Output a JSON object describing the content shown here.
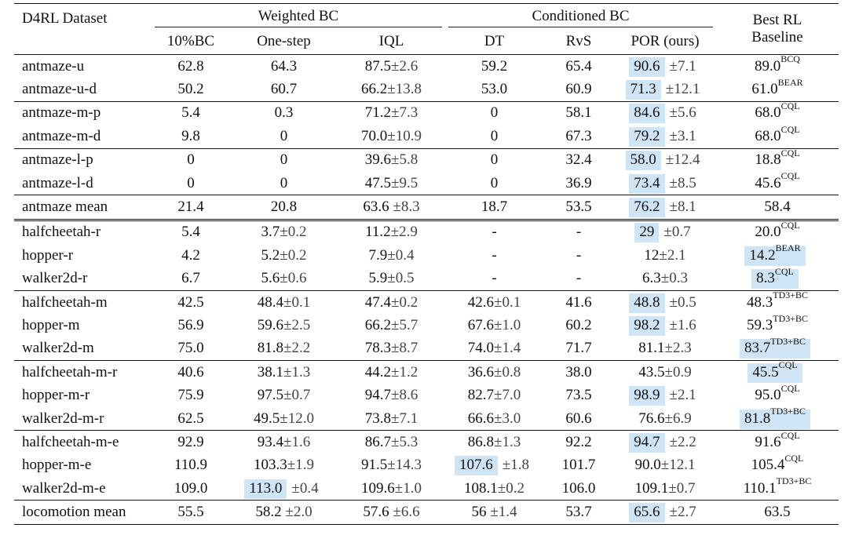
{
  "table": {
    "header": {
      "dataset": "D4RL Dataset",
      "group_weighted": "Weighted BC",
      "group_conditioned": "Conditioned BC",
      "best_rl_line1": "Best RL",
      "best_rl_line2": "Baseline",
      "columns": [
        "10%BC",
        "One-step",
        "IQL",
        "DT",
        "RvS",
        "POR (ours)"
      ]
    },
    "highlight_color": "#cfe5f6",
    "pm": "±",
    "rows": [
      {
        "name": "antmaze-u",
        "c": [
          {
            "v": "62.8"
          },
          {
            "v": "64.3"
          },
          {
            "v": "87.5",
            "s": "2.6"
          },
          {
            "v": "59.2"
          },
          {
            "v": "65.4"
          },
          {
            "v": "90.6",
            "s": "7.1",
            "h": true
          },
          {
            "v": "89.0",
            "sup": "BCQ"
          }
        ]
      },
      {
        "name": "antmaze-u-d",
        "c": [
          {
            "v": "50.2"
          },
          {
            "v": "60.7"
          },
          {
            "v": "66.2",
            "s": "13.8"
          },
          {
            "v": "53.0"
          },
          {
            "v": "60.9"
          },
          {
            "v": "71.3",
            "s": "12.1",
            "h": true
          },
          {
            "v": "61.0",
            "sup": "BEAR"
          }
        ]
      },
      {
        "name": "antmaze-m-p",
        "rule": true,
        "c": [
          {
            "v": "5.4"
          },
          {
            "v": "0.3"
          },
          {
            "v": "71.2",
            "s": "7.3"
          },
          {
            "v": "0"
          },
          {
            "v": "58.1"
          },
          {
            "v": "84.6",
            "s": "5.6",
            "h": true
          },
          {
            "v": "68.0",
            "sup": "CQL"
          }
        ]
      },
      {
        "name": "antmaze-m-d",
        "c": [
          {
            "v": "9.8"
          },
          {
            "v": "0"
          },
          {
            "v": "70.0",
            "s": "10.9"
          },
          {
            "v": "0"
          },
          {
            "v": "67.3"
          },
          {
            "v": "79.2",
            "s": "3.1",
            "h": true
          },
          {
            "v": "68.0",
            "sup": "CQL"
          }
        ]
      },
      {
        "name": "antmaze-l-p",
        "rule": true,
        "c": [
          {
            "v": "0"
          },
          {
            "v": "0"
          },
          {
            "v": "39.6",
            "s": "5.8"
          },
          {
            "v": "0"
          },
          {
            "v": "32.4"
          },
          {
            "v": "58.0",
            "s": "12.4",
            "h": true
          },
          {
            "v": "18.8",
            "sup": "CQL"
          }
        ]
      },
      {
        "name": "antmaze-l-d",
        "c": [
          {
            "v": "0"
          },
          {
            "v": "0"
          },
          {
            "v": "47.5",
            "s": "9.5"
          },
          {
            "v": "0"
          },
          {
            "v": "36.9"
          },
          {
            "v": "73.4",
            "s": "8.5",
            "h": true
          },
          {
            "v": "45.6",
            "sup": "CQL"
          }
        ]
      },
      {
        "name": "antmaze mean",
        "rule": true,
        "c": [
          {
            "v": "21.4"
          },
          {
            "v": "20.8"
          },
          {
            "v": "63.6 ",
            "s": "8.3"
          },
          {
            "v": "18.7"
          },
          {
            "v": "53.5"
          },
          {
            "v": "76.2",
            "s": "8.1",
            "h": true
          },
          {
            "v": "58.4"
          }
        ]
      },
      {
        "name": "halfcheetah-r",
        "double": true,
        "c": [
          {
            "v": "5.4"
          },
          {
            "v": "3.7",
            "s": "0.2"
          },
          {
            "v": "11.2",
            "s": "2.9"
          },
          {
            "v": "-"
          },
          {
            "v": "-"
          },
          {
            "v": "29",
            "s": "0.7",
            "h": true
          },
          {
            "v": "20.0",
            "sup": "CQL"
          }
        ]
      },
      {
        "name": "hopper-r",
        "c": [
          {
            "v": "4.2"
          },
          {
            "v": "5.2",
            "s": "0.2"
          },
          {
            "v": "7.9",
            "s": "0.4"
          },
          {
            "v": "-"
          },
          {
            "v": "-"
          },
          {
            "v": "12",
            "s": "2.1"
          },
          {
            "v": "14.2",
            "sup": "BEAR",
            "h": true
          }
        ]
      },
      {
        "name": "walker2d-r",
        "c": [
          {
            "v": "6.7"
          },
          {
            "v": "5.6",
            "s": "0.6"
          },
          {
            "v": "5.9",
            "s": "0.5"
          },
          {
            "v": "-"
          },
          {
            "v": "-"
          },
          {
            "v": "6.3",
            "s": "0.3"
          },
          {
            "v": "8.3",
            "sup": "CQL",
            "h": true
          }
        ]
      },
      {
        "name": "halfcheetah-m",
        "rule": true,
        "c": [
          {
            "v": "42.5"
          },
          {
            "v": "48.4",
            "s": "0.1"
          },
          {
            "v": "47.4",
            "s": "0.2"
          },
          {
            "v": "42.6",
            "s": "0.1"
          },
          {
            "v": "41.6"
          },
          {
            "v": "48.8",
            "s": "0.5",
            "h": true
          },
          {
            "v": "48.3",
            "sup": "TD3+BC"
          }
        ]
      },
      {
        "name": "hopper-m",
        "c": [
          {
            "v": "56.9"
          },
          {
            "v": "59.6",
            "s": "2.5"
          },
          {
            "v": "66.2",
            "s": "5.7"
          },
          {
            "v": "67.6",
            "s": "1.0"
          },
          {
            "v": "60.2"
          },
          {
            "v": "98.2",
            "s": "1.6",
            "h": true
          },
          {
            "v": "59.3",
            "sup": "TD3+BC"
          }
        ]
      },
      {
        "name": "walker2d-m",
        "c": [
          {
            "v": "75.0"
          },
          {
            "v": "81.8",
            "s": "2.2"
          },
          {
            "v": "78.3",
            "s": "8.7"
          },
          {
            "v": "74.0",
            "s": "1.4"
          },
          {
            "v": "71.7"
          },
          {
            "v": "81.1",
            "s": "2.3"
          },
          {
            "v": "83.7",
            "sup": "TD3+BC",
            "h": true
          }
        ]
      },
      {
        "name": "halfcheetah-m-r",
        "rule": true,
        "c": [
          {
            "v": "40.6"
          },
          {
            "v": "38.1",
            "s": "1.3"
          },
          {
            "v": "44.2",
            "s": "1.2"
          },
          {
            "v": "36.6",
            "s": "0.8"
          },
          {
            "v": "38.0"
          },
          {
            "v": "43.5",
            "s": "0.9"
          },
          {
            "v": "45.5",
            "sup": "CQL",
            "h": true
          }
        ]
      },
      {
        "name": "hopper-m-r",
        "c": [
          {
            "v": "75.9"
          },
          {
            "v": "97.5",
            "s": "0.7"
          },
          {
            "v": "94.7",
            "s": "8.6"
          },
          {
            "v": "82.7",
            "s": "7.0"
          },
          {
            "v": "73.5"
          },
          {
            "v": "98.9",
            "s": "2.1",
            "h": true
          },
          {
            "v": "95.0",
            "sup": "CQL"
          }
        ]
      },
      {
        "name": "walker2d-m-r",
        "c": [
          {
            "v": "62.5"
          },
          {
            "v": "49.5",
            "s": "12.0"
          },
          {
            "v": "73.8",
            "s": "7.1"
          },
          {
            "v": "66.6",
            "s": "3.0"
          },
          {
            "v": "60.6"
          },
          {
            "v": "76.6",
            "s": "6.9"
          },
          {
            "v": "81.8",
            "sup": "TD3+BC",
            "h": true
          }
        ]
      },
      {
        "name": "halfcheetah-m-e",
        "rule": true,
        "c": [
          {
            "v": "92.9"
          },
          {
            "v": "93.4",
            "s": "1.6"
          },
          {
            "v": "86.7",
            "s": "5.3"
          },
          {
            "v": "86.8",
            "s": "1.3"
          },
          {
            "v": "92.2"
          },
          {
            "v": "94.7",
            "s": "2.2",
            "h": true
          },
          {
            "v": "91.6",
            "sup": "CQL"
          }
        ]
      },
      {
        "name": "hopper-m-e",
        "c": [
          {
            "v": "110.9"
          },
          {
            "v": "103.3",
            "s": "1.9"
          },
          {
            "v": "91.5",
            "s": "14.3"
          },
          {
            "v": "107.6",
            "s": "1.8",
            "h": true
          },
          {
            "v": "101.7"
          },
          {
            "v": "90.0",
            "s": "12.1"
          },
          {
            "v": "105.4",
            "sup": "CQL"
          }
        ]
      },
      {
        "name": "walker2d-m-e",
        "c": [
          {
            "v": "109.0"
          },
          {
            "v": "113.0",
            "s": "0.4",
            "h": true
          },
          {
            "v": "109.6",
            "s": "1.0"
          },
          {
            "v": "108.1",
            "s": "0.2"
          },
          {
            "v": "106.0"
          },
          {
            "v": "109.1",
            "s": "0.7"
          },
          {
            "v": "110.1",
            "sup": "TD3+BC"
          }
        ]
      },
      {
        "name": "locomotion mean",
        "rule": true,
        "c": [
          {
            "v": "55.5"
          },
          {
            "v": "58.2 ",
            "s": "2.0"
          },
          {
            "v": "57.6 ",
            "s": "6.6"
          },
          {
            "v": "56 ",
            "s": "1.4"
          },
          {
            "v": "53.7"
          },
          {
            "v": "65.6",
            "s": "2.7",
            "h": true
          },
          {
            "v": "63.5"
          }
        ]
      }
    ]
  }
}
